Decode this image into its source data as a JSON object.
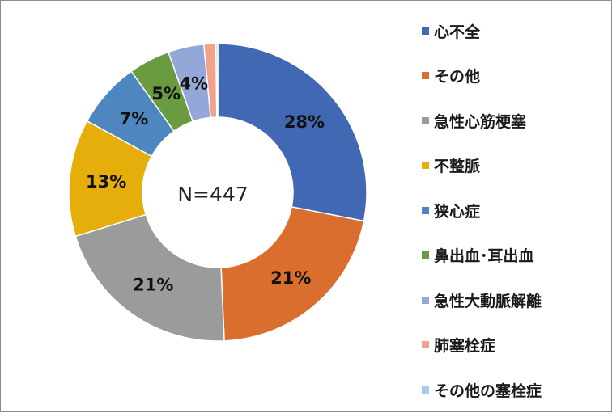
{
  "chart_data": {
    "type": "pie",
    "center_label": "N=447",
    "categories": [
      "心不全",
      "その他",
      "急性心筋梗塞",
      "不整脈",
      "狭心症",
      "鼻出血･耳出血",
      "急性大動脈解離",
      "肺塞栓症",
      "その他の塞栓症"
    ],
    "values": [
      28.2,
      21.3,
      21.0,
      12.8,
      7.2,
      4.5,
      3.9,
      1.3,
      0.2
    ],
    "labels": [
      "28%",
      "21%",
      "21%",
      "13%",
      "7%",
      "5%",
      "4%",
      "",
      ""
    ],
    "colors": [
      "#4169B3",
      "#D96E2E",
      "#9B9B9B",
      "#E6AE0A",
      "#4E87BF",
      "#6A9B40",
      "#93A7D9",
      "#F0A28A",
      "#A9C8EE"
    ],
    "legend_position": "right"
  }
}
